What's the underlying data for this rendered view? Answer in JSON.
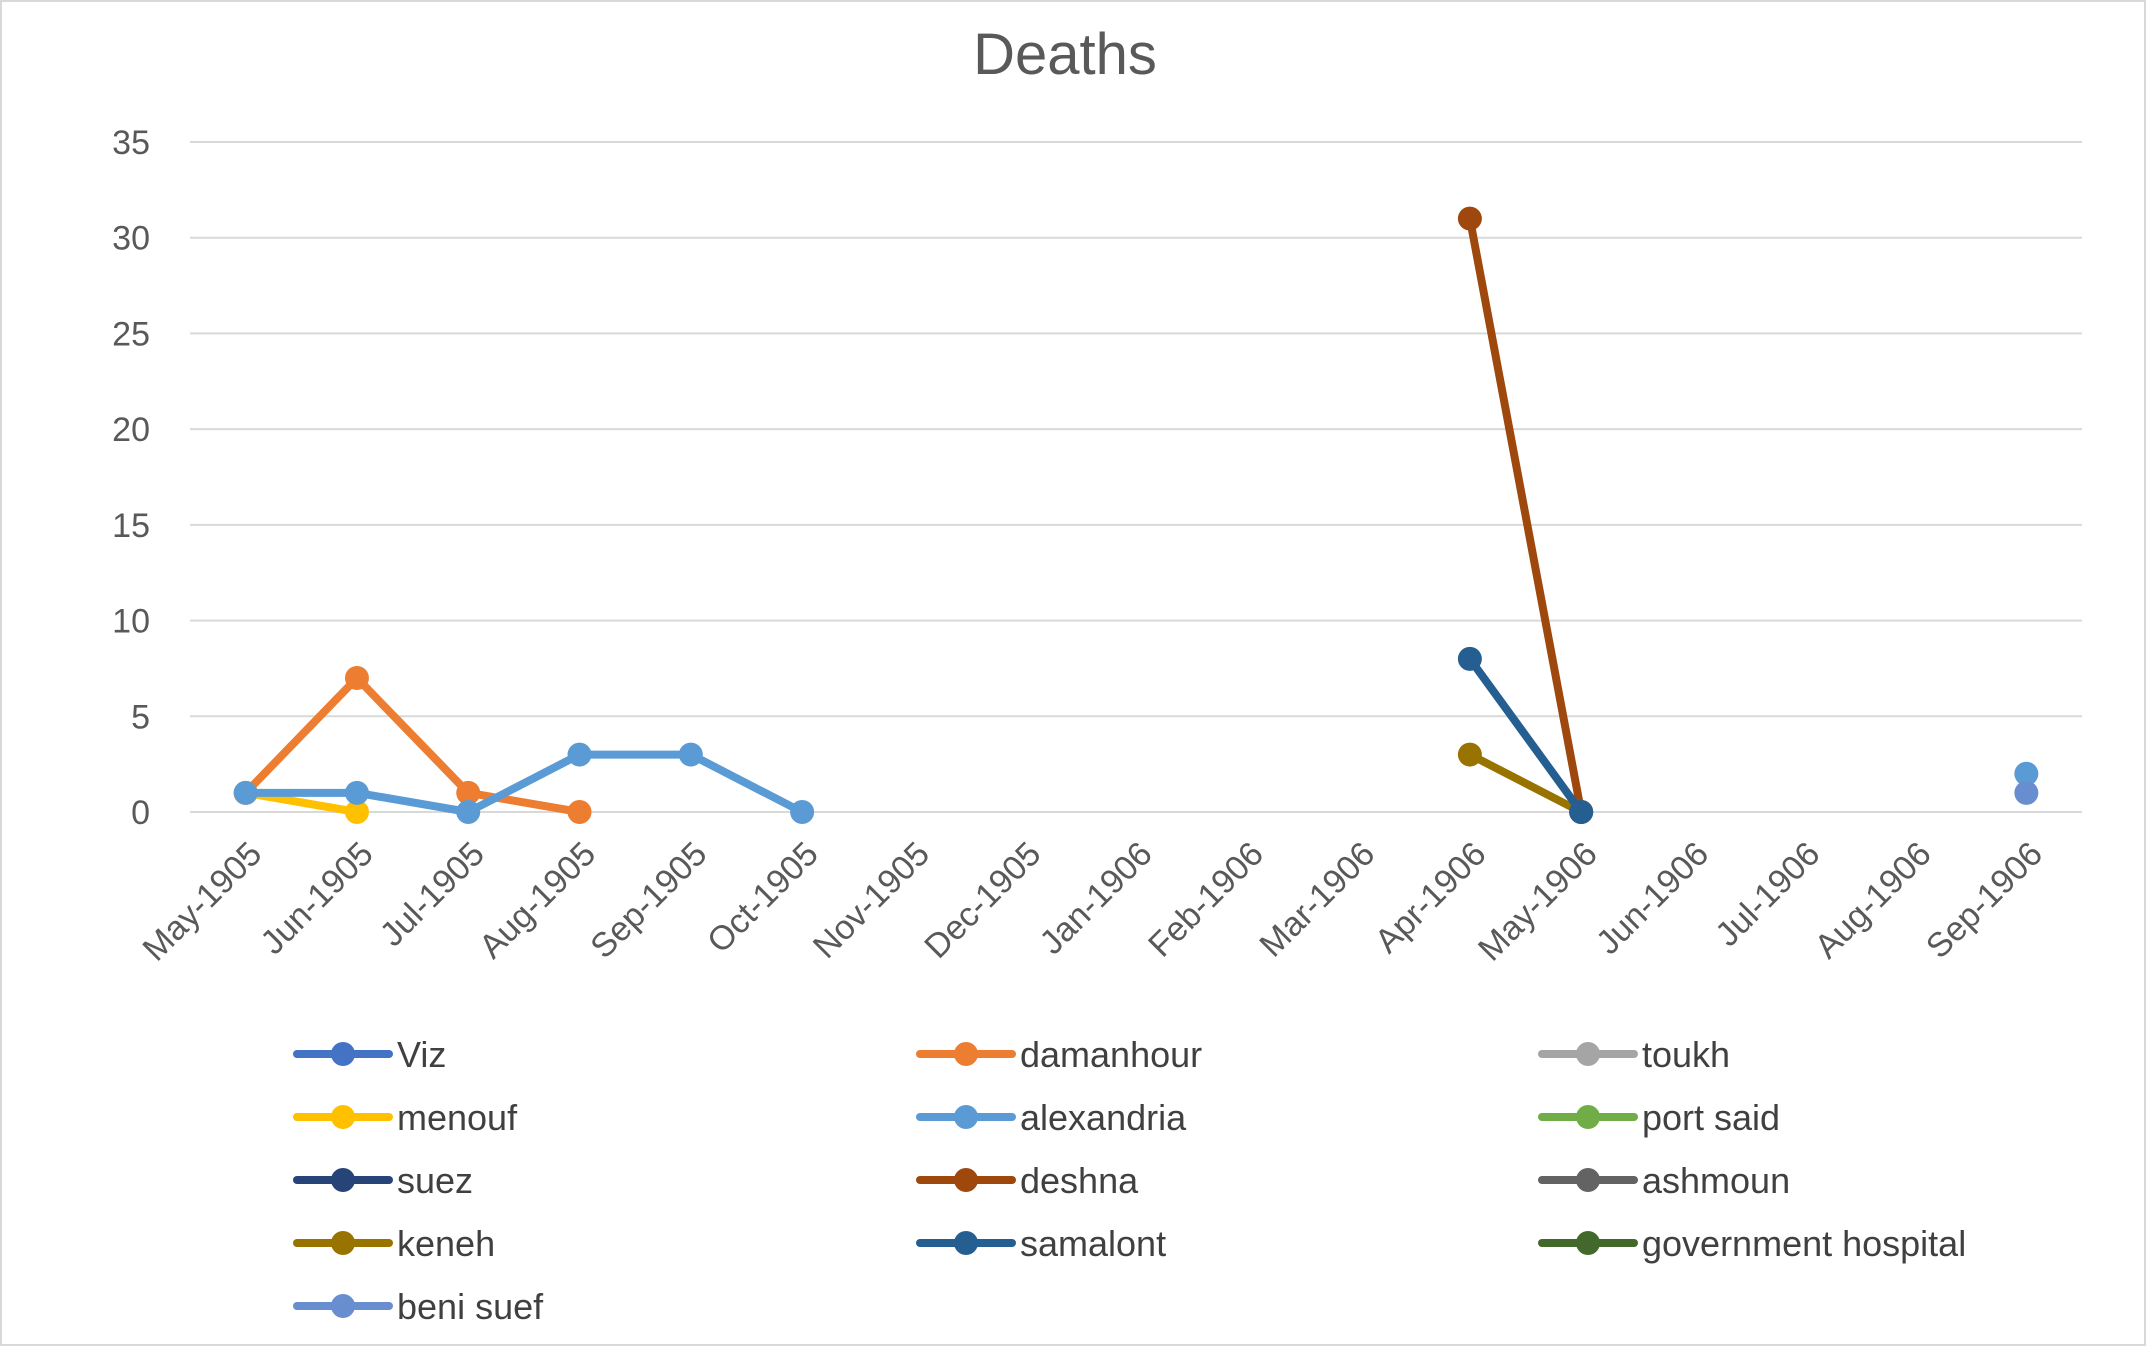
{
  "chart_data": {
    "type": "line",
    "title": "Deaths",
    "xlabel": "",
    "ylabel": "",
    "ylim": [
      0,
      35
    ],
    "yticks": [
      0,
      5,
      10,
      15,
      20,
      25,
      30,
      35
    ],
    "grid": true,
    "legend_position": "bottom",
    "categories": [
      "May-1905",
      "Jun-1905",
      "Jul-1905",
      "Aug-1905",
      "Sep-1905",
      "Oct-1905",
      "Nov-1905",
      "Dec-1905",
      "Jan-1906",
      "Feb-1906",
      "Mar-1906",
      "Apr-1906",
      "May-1906",
      "Jun-1906",
      "Jul-1906",
      "Aug-1906",
      "Sep-1906"
    ],
    "series": [
      {
        "name": "Viz",
        "color": "#4472c4",
        "values": [
          null,
          null,
          null,
          null,
          null,
          null,
          null,
          null,
          null,
          null,
          null,
          null,
          null,
          null,
          null,
          null,
          null
        ]
      },
      {
        "name": "damanhour",
        "color": "#ed7d31",
        "values": [
          1,
          7,
          1,
          0,
          null,
          null,
          null,
          null,
          null,
          null,
          null,
          null,
          null,
          null,
          null,
          null,
          null
        ]
      },
      {
        "name": "toukh",
        "color": "#a5a5a5",
        "values": [
          null,
          null,
          null,
          null,
          null,
          null,
          null,
          null,
          null,
          null,
          null,
          null,
          null,
          null,
          null,
          null,
          null
        ]
      },
      {
        "name": "menouf",
        "color": "#ffc000",
        "values": [
          1,
          0,
          null,
          null,
          null,
          null,
          null,
          null,
          null,
          null,
          null,
          null,
          null,
          null,
          null,
          null,
          null
        ]
      },
      {
        "name": "alexandria",
        "color": "#5b9bd5",
        "values": [
          1,
          1,
          0,
          3,
          3,
          0,
          null,
          null,
          null,
          null,
          null,
          null,
          null,
          null,
          null,
          null,
          2
        ]
      },
      {
        "name": "port said",
        "color": "#70ad47",
        "values": [
          null,
          null,
          null,
          null,
          null,
          null,
          null,
          null,
          null,
          null,
          null,
          null,
          null,
          null,
          null,
          null,
          null
        ]
      },
      {
        "name": "suez",
        "color": "#264478",
        "values": [
          null,
          null,
          null,
          null,
          null,
          null,
          null,
          null,
          null,
          null,
          null,
          null,
          null,
          null,
          null,
          null,
          null
        ]
      },
      {
        "name": "deshna",
        "color": "#9e480e",
        "values": [
          null,
          null,
          null,
          null,
          null,
          null,
          null,
          null,
          null,
          null,
          null,
          31,
          0,
          null,
          null,
          null,
          null
        ]
      },
      {
        "name": "ashmoun",
        "color": "#636363",
        "values": [
          null,
          null,
          null,
          null,
          null,
          null,
          null,
          null,
          null,
          null,
          null,
          null,
          null,
          null,
          null,
          null,
          null
        ]
      },
      {
        "name": "keneh",
        "color": "#997300",
        "values": [
          null,
          null,
          null,
          null,
          null,
          null,
          null,
          null,
          null,
          null,
          null,
          3,
          0,
          null,
          null,
          null,
          null
        ]
      },
      {
        "name": "samalont",
        "color": "#255e91",
        "values": [
          null,
          null,
          null,
          null,
          null,
          null,
          null,
          null,
          null,
          null,
          null,
          8,
          0,
          null,
          null,
          null,
          null
        ]
      },
      {
        "name": "government hospital",
        "color": "#43682b",
        "values": [
          null,
          null,
          null,
          null,
          null,
          null,
          null,
          null,
          null,
          null,
          null,
          null,
          null,
          null,
          null,
          null,
          null
        ]
      },
      {
        "name": "beni suef",
        "color": "#698ed0",
        "values": [
          null,
          null,
          null,
          null,
          null,
          null,
          null,
          null,
          null,
          null,
          null,
          null,
          null,
          null,
          null,
          null,
          1
        ]
      }
    ]
  }
}
